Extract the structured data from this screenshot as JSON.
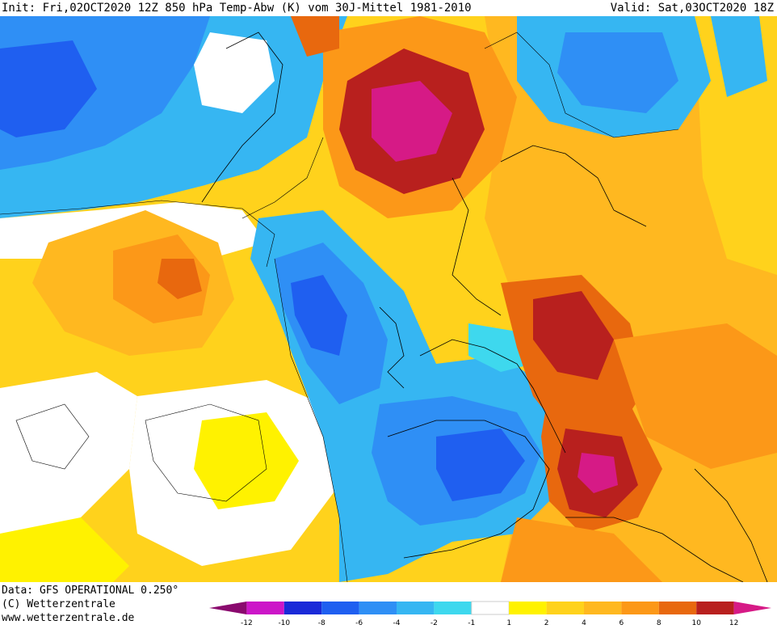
{
  "header": {
    "init_text": "Init: Fri,02OCT2020 12Z 850 hPa Temp-Abw (K) vom 30J-Mittel 1981-2010",
    "valid_text": "Valid: Sat,03OCT2020 18Z"
  },
  "footer": {
    "data_source": "Data: GFS OPERATIONAL 0.250°",
    "copyright": "(C) Wetterzentrale",
    "website": "www.wetterzentrale.de"
  },
  "legend": {
    "ticks": [
      "-12",
      "-10",
      "-8",
      "-6",
      "-4",
      "-2",
      "-1",
      "1",
      "2",
      "4",
      "6",
      "8",
      "10",
      "12"
    ],
    "colors": [
      "#8a0a6e",
      "#cc16c8",
      "#1a2ad8",
      "#1f5ff0",
      "#2f8ff5",
      "#36b6f2",
      "#3ed8ee",
      "#ffffff",
      "#fff200",
      "#ffd21c",
      "#ffb820",
      "#fc9818",
      "#e8680e",
      "#b8201e",
      "#d61a86"
    ]
  },
  "colors": {
    "deep_blue": "#1f4fe0",
    "blue": "#2f8ff5",
    "light_blue": "#36b6f2",
    "cyan": "#3ed8ee",
    "neutral": "#ffffff",
    "yellow": "#fff200",
    "gold": "#ffd21c",
    "orange": "#ffb820",
    "dark_orange": "#fc9818",
    "red_orange": "#e8680e",
    "dark_red": "#b8201e",
    "magenta": "#d61a86"
  }
}
